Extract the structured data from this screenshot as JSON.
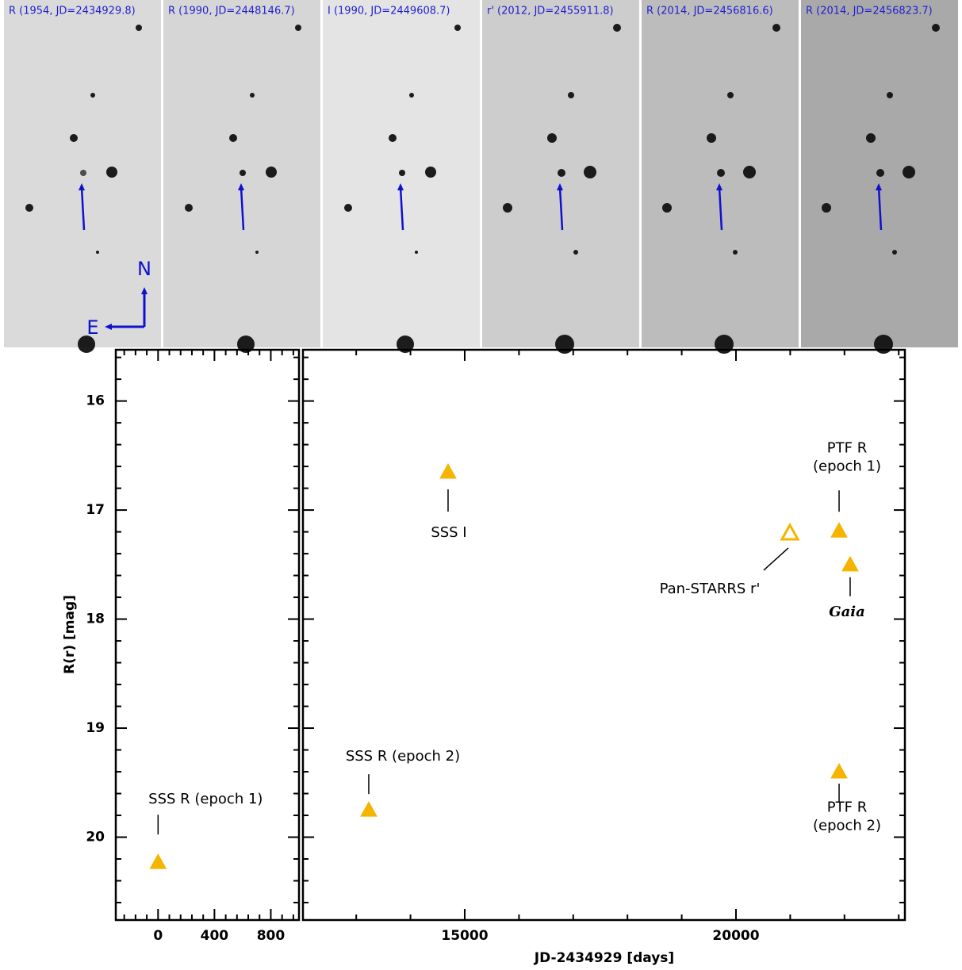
{
  "images": [
    {
      "label": "R (1954, JD=2434929.8)",
      "shade": "#dadada"
    },
    {
      "label": "R (1990, JD=2448146.7)",
      "shade": "#d6d6d6"
    },
    {
      "label": "I (1990, JD=2449608.7)",
      "shade": "#e4e4e4"
    },
    {
      "label": "r' (2012, JD=2455911.8)",
      "shade": "#cdcdcd"
    },
    {
      "label": "R (2014, JD=2456816.6)",
      "shade": "#bcbcbc"
    },
    {
      "label": "R (2014, JD=2456823.7)",
      "shade": "#a9a9a9"
    }
  ],
  "compass": {
    "north": "N",
    "east": "E"
  },
  "chart_data": [
    {
      "type": "scatter",
      "ylabel": "R(r) [mag]",
      "color": "#f5b400",
      "x": [
        0
      ],
      "values": [
        20.23
      ],
      "filled": [
        true
      ],
      "annotations": [
        [
          "SSS R (epoch 1)"
        ]
      ],
      "xlim": [
        -300,
        1000
      ],
      "xticks": [
        0,
        400,
        800
      ],
      "ylim": [
        15.53,
        20.76
      ],
      "yticks": [
        16,
        17,
        18,
        19,
        20
      ],
      "y_inverted": true
    },
    {
      "type": "scatter",
      "xlabel": "JD-2434929 [days]",
      "color": "#f5b400",
      "x": [
        13231,
        14693,
        20994,
        21901,
        22105,
        21901
      ],
      "values": [
        19.75,
        16.65,
        17.21,
        17.19,
        17.5,
        19.4
      ],
      "filled": [
        true,
        true,
        false,
        true,
        true,
        true
      ],
      "annotations": [
        [
          "SSS R (epoch 2)"
        ],
        [
          "SSS I"
        ],
        [
          "Pan-STARRS r'"
        ],
        [
          "PTF R",
          "(epoch 1)"
        ],
        [
          "Gaia"
        ],
        [
          "PTF R",
          "(epoch 2)"
        ]
      ],
      "xlim": [
        12018,
        23114
      ],
      "xticks": [
        15000,
        20000
      ],
      "ylim": [
        15.53,
        20.76
      ],
      "yticks": [
        16,
        17,
        18,
        19,
        20
      ],
      "y_inverted": true
    }
  ]
}
